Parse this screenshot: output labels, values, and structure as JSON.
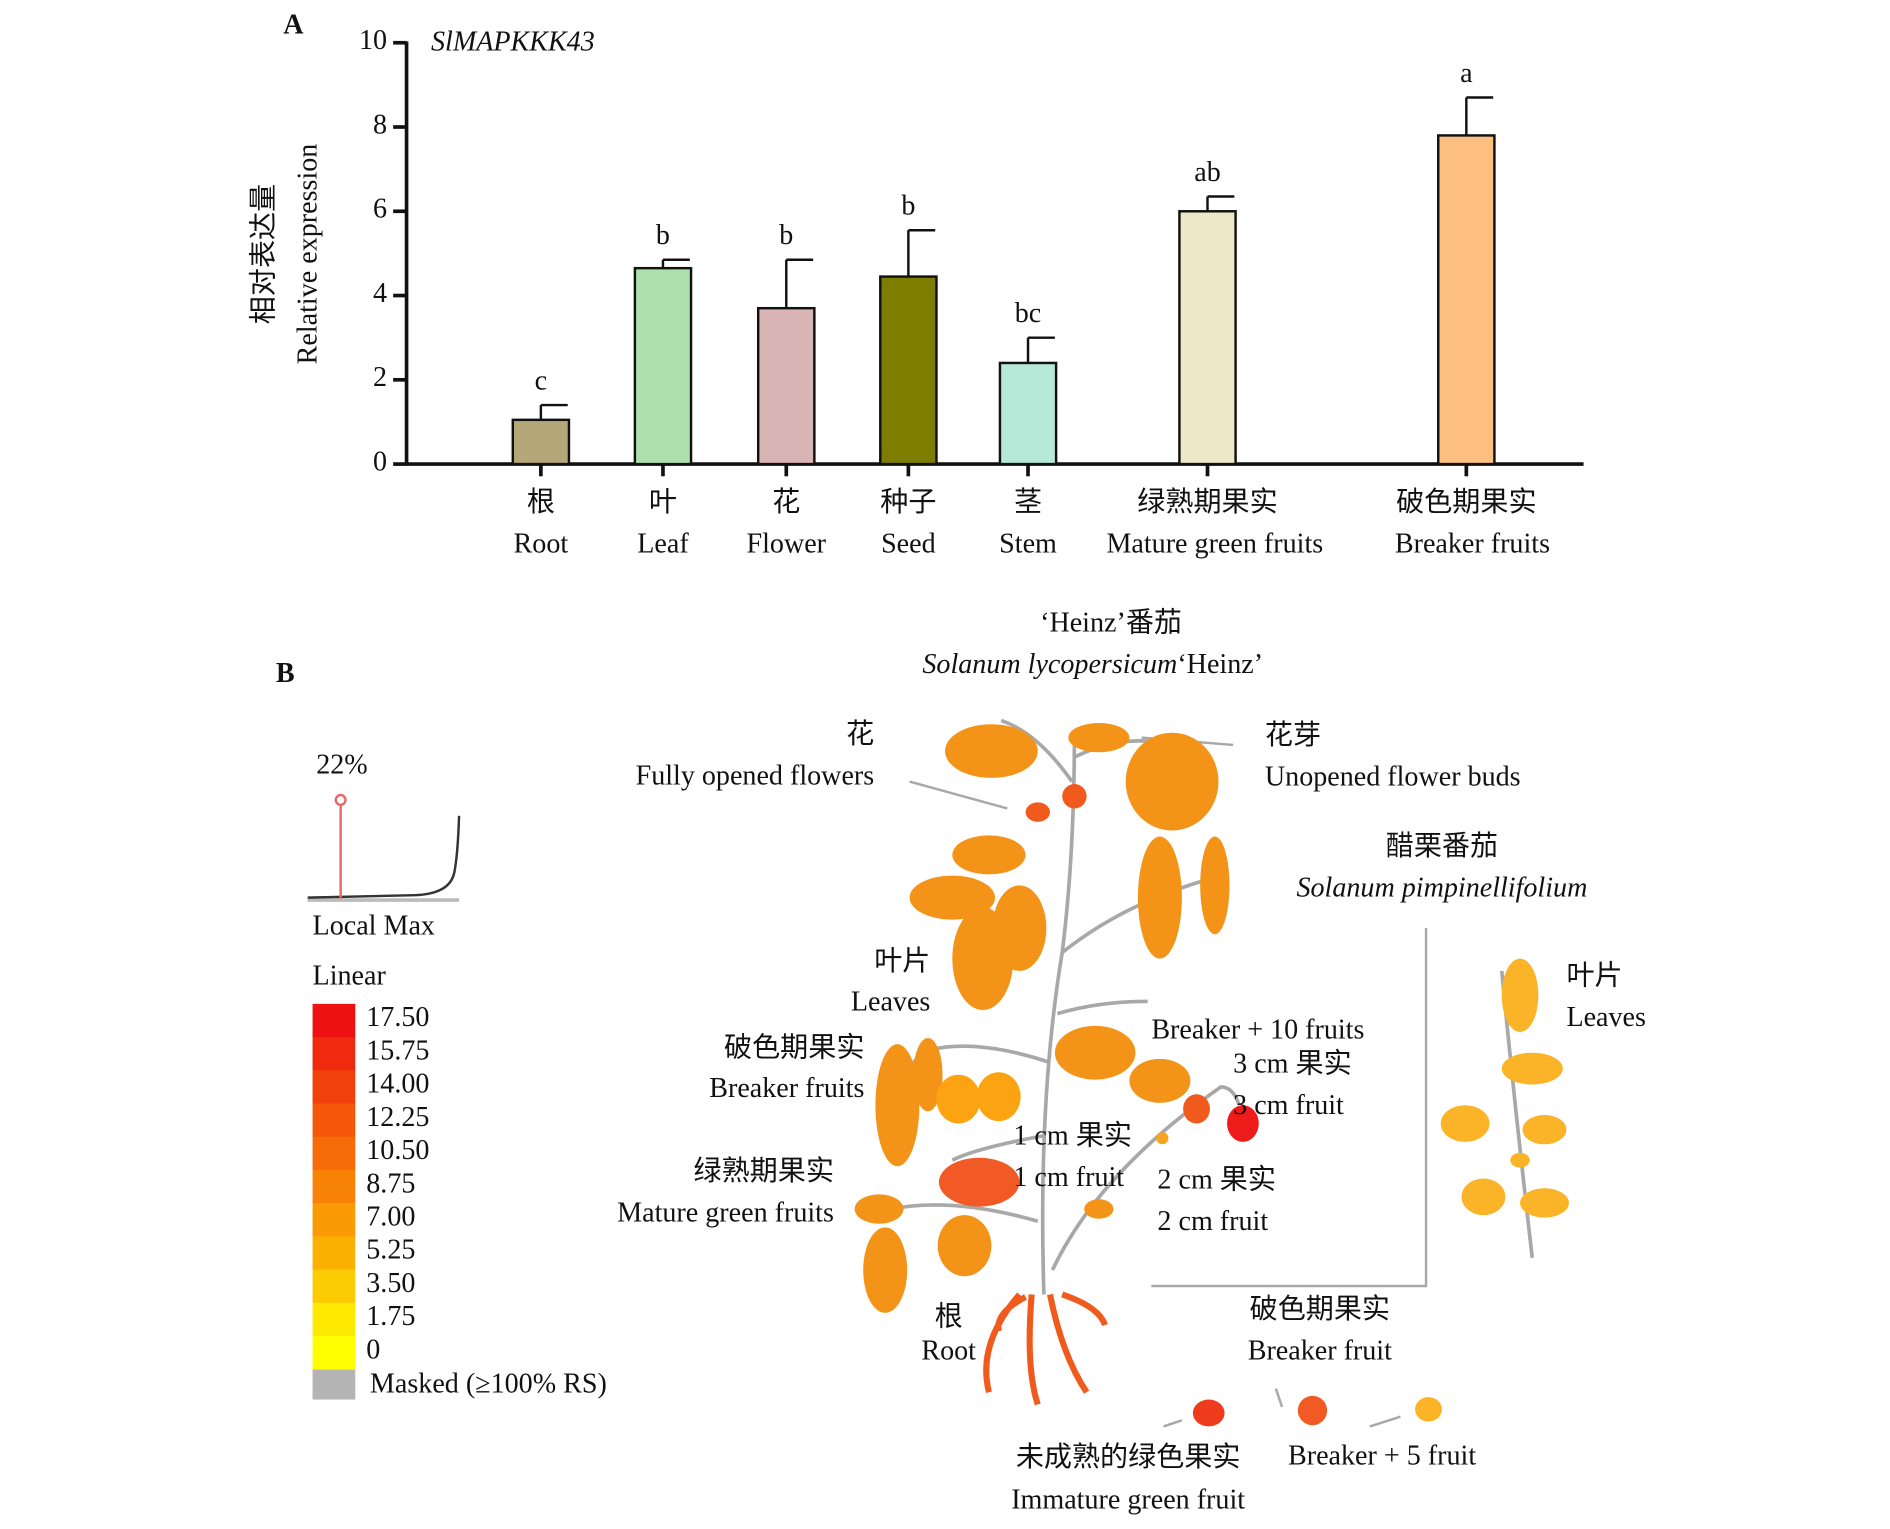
{
  "chart_data": {
    "type": "bar",
    "panel": "A",
    "title": "SlMAPKKK43",
    "ylabel_zh": "相对表达量",
    "ylabel": "Relative expression",
    "categories": [
      "Root",
      "Leaf",
      "Flower",
      "Seed",
      "Stem",
      "Mature green fruits",
      "Breaker fruits"
    ],
    "categories_zh": [
      "根",
      "叶",
      "花",
      "种子",
      "茎",
      "绿熟期果实",
      "破色期果实"
    ],
    "values": [
      1.05,
      4.65,
      3.7,
      4.45,
      2.4,
      6.0,
      7.8
    ],
    "errors": [
      0.35,
      0.2,
      1.15,
      1.1,
      0.6,
      0.35,
      0.9
    ],
    "annotations": [
      "c",
      "b",
      "b",
      "b",
      "bc",
      "ab",
      "a"
    ],
    "colors": [
      "#b5a878",
      "#aee0ae",
      "#d9b4b4",
      "#7d7d00",
      "#b5e8d6",
      "#ede8c8",
      "#fdbf80"
    ],
    "ylim": [
      0,
      10
    ],
    "yticks": [
      0,
      2,
      4,
      6,
      8,
      10
    ]
  },
  "panel_b": {
    "letter": "B",
    "title": "‘Heinz’番茄",
    "species": "Solanum lycopersicum",
    "cultivar": "‘Heinz’",
    "legend": {
      "percent": "22%",
      "local_max": "Local Max",
      "scale": "Linear",
      "levels": [
        "17.50",
        "15.75",
        "14.00",
        "12.25",
        "10.50",
        "8.75",
        "7.00",
        "5.25",
        "3.50",
        "1.75",
        "0"
      ],
      "masked": "Masked (≥100% RS)"
    },
    "labels": [
      {
        "zh": "花",
        "en": "Fully  opened flowers"
      },
      {
        "zh": "花芽",
        "en": "Unopened flower buds"
      },
      {
        "zh": "醋栗番茄",
        "en": "Solanum pimpinellifolium"
      },
      {
        "zh": "叶片",
        "en": "Leaves"
      },
      {
        "zh": "叶片",
        "en": "Leaves"
      },
      {
        "zh": "破色期果实",
        "en": "Breaker fruits"
      },
      {
        "en": "Breaker + 10 fruits"
      },
      {
        "zh": "3 cm 果实",
        "en": "3 cm fruit"
      },
      {
        "zh": "1 cm 果实",
        "en": "1 cm fruit"
      },
      {
        "zh": "2 cm 果实",
        "en": "2 cm fruit"
      },
      {
        "zh": "绿熟期果实",
        "en": "Mature green fruits"
      },
      {
        "zh": "根",
        "en": "Root"
      },
      {
        "zh": "破色期果实",
        "en": "Breaker fruit"
      },
      {
        "zh": "未成熟的绿色果实",
        "en": "Immature green fruit"
      },
      {
        "en": "Breaker + 5 fruit"
      }
    ]
  }
}
